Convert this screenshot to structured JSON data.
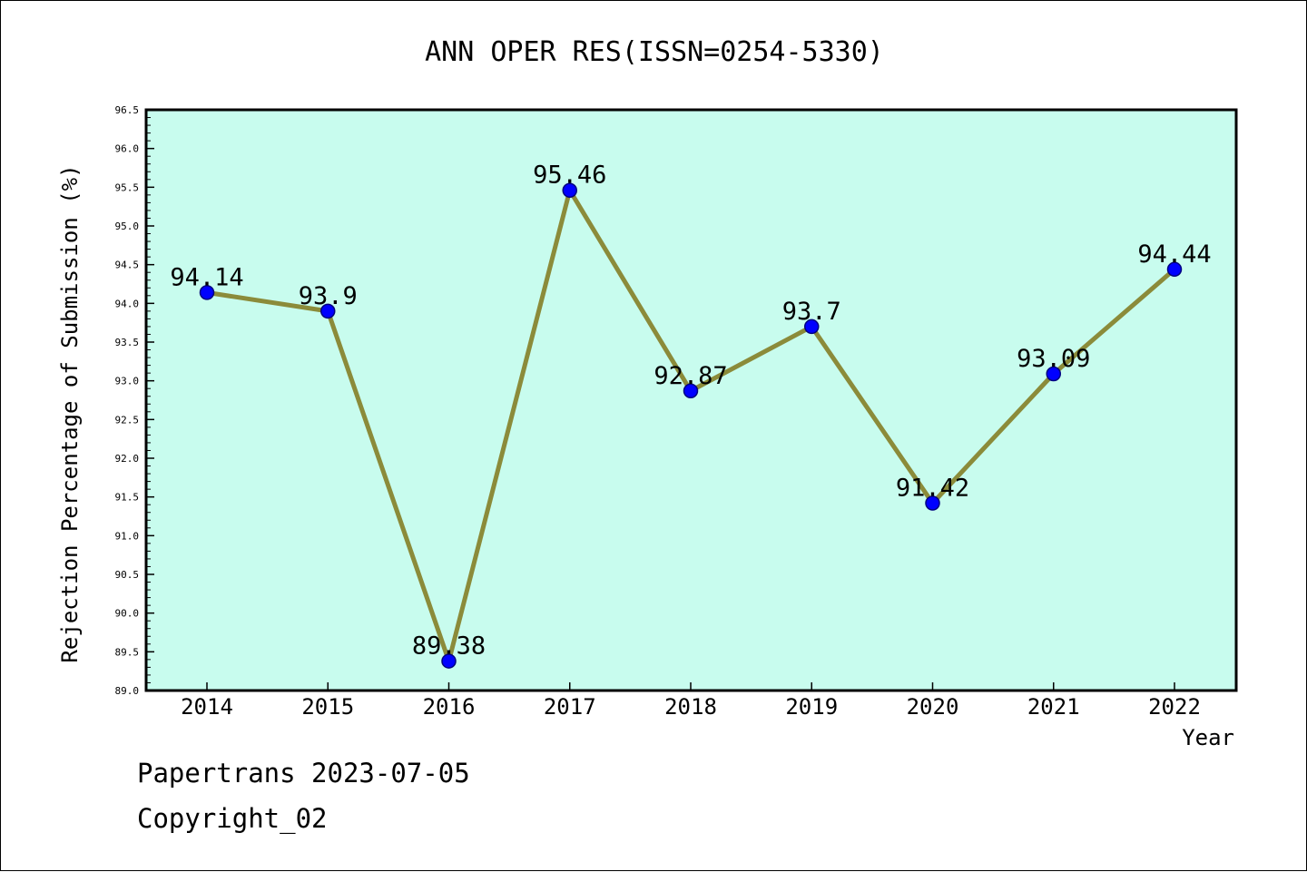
{
  "chart_data": {
    "type": "line",
    "title": "ANN OPER RES(ISSN=0254-5330)",
    "xlabel": "Year",
    "ylabel": "Rejection Percentage of Submission (%)",
    "categories": [
      "2014",
      "2015",
      "2016",
      "2017",
      "2018",
      "2019",
      "2020",
      "2021",
      "2022"
    ],
    "series": [
      {
        "values": [
          94.14,
          93.9,
          89.38,
          95.46,
          92.87,
          93.7,
          91.42,
          93.09,
          94.44
        ]
      }
    ],
    "data_labels": [
      "94.14",
      "93.9",
      "89.38",
      "95.46",
      "92.87",
      "93.7",
      "91.42",
      "93.09",
      "94.44"
    ],
    "ylim": [
      89.0,
      96.5
    ],
    "yticks": [
      "89.0",
      "89.5",
      "90.0",
      "90.5",
      "91.0",
      "91.5",
      "92.0",
      "92.5",
      "93.0",
      "93.5",
      "94.0",
      "94.5",
      "95.0",
      "95.5",
      "96.0",
      "96.5"
    ],
    "grid": false,
    "colors": {
      "plot_background": "#c8fcee",
      "line": "#8b8b3a",
      "marker": "#0000ff",
      "marker_edge": "#000080"
    }
  },
  "footer": {
    "line1": "Papertrans 2023-07-05",
    "line2": "Copyright_02"
  }
}
